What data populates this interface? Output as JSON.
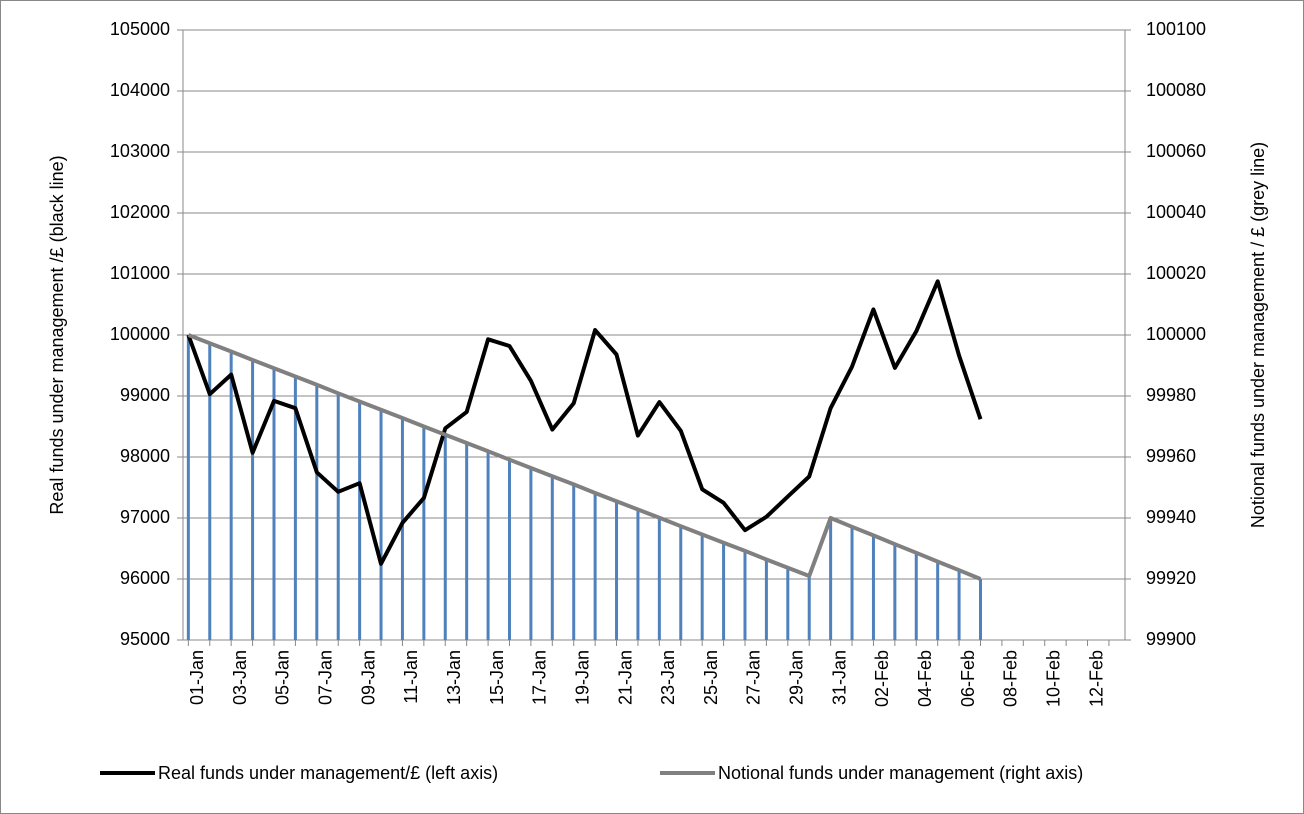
{
  "chart_data": {
    "type": "line",
    "y_label": "Real funds under management /£ (black line)",
    "y2_label": "Notional funds under management / £ (grey line)",
    "categories": [
      "01-Jan",
      null,
      "03-Jan",
      null,
      "05-Jan",
      null,
      "07-Jan",
      null,
      "09-Jan",
      null,
      "11-Jan",
      null,
      "13-Jan",
      null,
      "15-Jan",
      null,
      "17-Jan",
      null,
      "19-Jan",
      null,
      "21-Jan",
      null,
      "23-Jan",
      null,
      "25-Jan",
      null,
      "27-Jan",
      null,
      "29-Jan",
      null,
      "31-Jan",
      null,
      "02-Feb",
      null,
      "04-Feb",
      null,
      "06-Feb",
      null,
      "08-Feb",
      null,
      "10-Feb",
      null,
      "12-Feb",
      null
    ],
    "series": [
      {
        "name": "Real funds under management/£ (left axis)",
        "color": "#000000",
        "values": [
          100000,
          99030,
          99350,
          98070,
          98920,
          98800,
          97750,
          97430,
          97570,
          96250,
          96920,
          97330,
          98470,
          98740,
          99930,
          99820,
          99250,
          98450,
          98880,
          100080,
          99680,
          98350,
          98900,
          98430,
          97470,
          97250,
          96800,
          97020,
          97350,
          97680,
          98800,
          99480,
          100420,
          99460,
          100060,
          100880,
          99660,
          98620,
          null,
          null,
          null,
          null,
          null,
          null
        ]
      },
      {
        "name": "Notional funds under management (right axis)",
        "color": "#808080",
        "axis": "y2",
        "values": [
          100000,
          99997.3,
          99994.6,
          99991.8,
          99989.1,
          99986.4,
          99983.7,
          99980.9,
          99978.2,
          99975.5,
          99972.8,
          99970.0,
          99967.3,
          99964.6,
          99961.9,
          99959.1,
          99956.4,
          99953.7,
          99951.0,
          99948.2,
          99945.5,
          99942.8,
          99940.1,
          99937.3,
          99934.6,
          99931.9,
          99929.2,
          99926.4,
          99923.7,
          99921.0,
          99940,
          99937.1,
          99934.3,
          99931.4,
          99928.6,
          99925.7,
          99922.9,
          99920,
          null,
          null,
          null,
          null,
          null,
          null
        ]
      }
    ],
    "drop_bars_color": "#4f81bd",
    "ylim": [
      95000,
      105000
    ],
    "yticks": [
      95000,
      96000,
      97000,
      98000,
      99000,
      100000,
      101000,
      102000,
      103000,
      104000,
      105000
    ],
    "y2lim": [
      99900,
      100100
    ],
    "y2ticks": [
      99900,
      99920,
      99940,
      99960,
      99980,
      100000,
      100020,
      100040,
      100060,
      100080,
      100100
    ],
    "grid": true
  }
}
